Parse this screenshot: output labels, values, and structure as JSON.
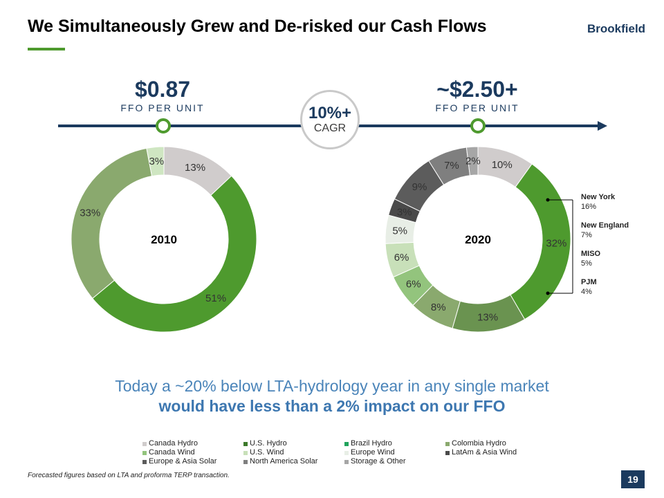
{
  "slide": {
    "title": "We Simultaneously Grew and De-risked our Cash Flows",
    "logo": "Brookfield",
    "page_number": "19",
    "footnote": "Forecasted figures based on LTA and proforma TERP transaction."
  },
  "metrics": {
    "left": {
      "value": "$0.87",
      "label": "FFO PER UNIT"
    },
    "right": {
      "value": "~$2.50+",
      "label": "FFO PER UNIT"
    },
    "cagr": {
      "value": "10%+",
      "label": "CAGR"
    }
  },
  "colors": {
    "navy": "#1b3a5e",
    "accent_green": "#4e9a2e",
    "headline_blue": "#4a84b9"
  },
  "headline": {
    "line1": "Today a ~20% below LTA-hydrology year in any single market",
    "line2": "would have less than a 2% impact on our FFO"
  },
  "callouts": [
    {
      "name": "New York",
      "value": "16%"
    },
    {
      "name": "New England",
      "value": "7%"
    },
    {
      "name": "MISO",
      "value": "5%"
    },
    {
      "name": "PJM",
      "value": "4%"
    }
  ],
  "legend": [
    {
      "label": "Canada Hydro",
      "color": "#d0cccc"
    },
    {
      "label": "U.S. Hydro",
      "color": "#3d7a2b"
    },
    {
      "label": "Brazil Hydro",
      "color": "#21a35c"
    },
    {
      "label": "Colombia Hydro",
      "color": "#8aa96e"
    },
    {
      "label": "Canada Wind",
      "color": "#93c47d"
    },
    {
      "label": "U.S. Wind",
      "color": "#c8e0b9"
    },
    {
      "label": "Europe Wind",
      "color": "#e8eee6"
    },
    {
      "label": "LatAm & Asia Wind",
      "color": "#4a4a4a"
    },
    {
      "label": "Europe & Asia Solar",
      "color": "#5c5c5c"
    },
    {
      "label": "North America Solar",
      "color": "#7f7f7f"
    },
    {
      "label": "Storage & Other",
      "color": "#a6a6a6"
    }
  ],
  "chart_data": [
    {
      "type": "pie",
      "subtype": "donut",
      "center_label": "2010",
      "slices": [
        {
          "label": "13%",
          "value": 13,
          "color": "#d0cccc"
        },
        {
          "label": "51%",
          "value": 51,
          "color": "#4e9a2e"
        },
        {
          "label": "33%",
          "value": 33,
          "color": "#8aa96e"
        },
        {
          "label": "3%",
          "value": 3,
          "color": "#cfe6c2"
        }
      ]
    },
    {
      "type": "pie",
      "subtype": "donut",
      "center_label": "2020",
      "slices": [
        {
          "label": "10%",
          "value": 10,
          "color": "#d0cccc"
        },
        {
          "label": "32%",
          "value": 32,
          "color": "#4e9a2e"
        },
        {
          "label": "13%",
          "value": 13,
          "color": "#6a9350"
        },
        {
          "label": "8%",
          "value": 8,
          "color": "#8aa96e"
        },
        {
          "label": "6%",
          "value": 6,
          "color": "#93c47d"
        },
        {
          "label": "6%",
          "value": 6,
          "color": "#c8e0b9"
        },
        {
          "label": "5%",
          "value": 5,
          "color": "#e8eee6"
        },
        {
          "label": "3%",
          "value": 3,
          "color": "#4a4a4a"
        },
        {
          "label": "9%",
          "value": 9,
          "color": "#5c5c5c"
        },
        {
          "label": "7%",
          "value": 7,
          "color": "#7f7f7f"
        },
        {
          "label": "2%",
          "value": 2,
          "color": "#a6a6a6"
        }
      ]
    }
  ]
}
